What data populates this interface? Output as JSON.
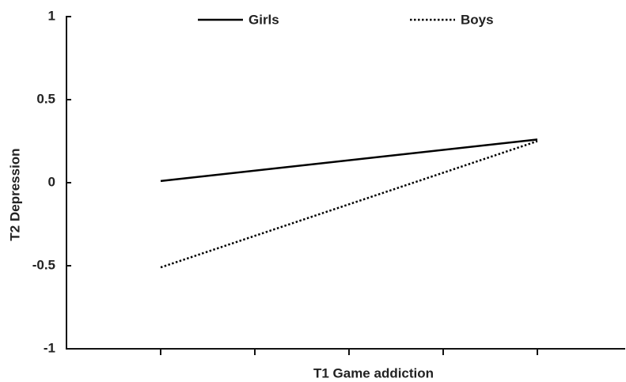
{
  "chart_data": {
    "type": "line",
    "x_label": "T1 Game addiction",
    "y_label": "T2 Depression",
    "categories": [
      null,
      null
    ],
    "series": [
      {
        "name": "Girls",
        "color": "#000000",
        "style": "solid",
        "values": [
          0.01,
          0.26
        ]
      },
      {
        "name": "Boys",
        "color": "#000000",
        "style": "dotted",
        "values": [
          -0.51,
          0.25
        ]
      }
    ],
    "ylim": [
      -1,
      1
    ],
    "yticks": [
      1,
      0.5,
      0,
      -0.5,
      -1
    ],
    "legend": "top"
  }
}
